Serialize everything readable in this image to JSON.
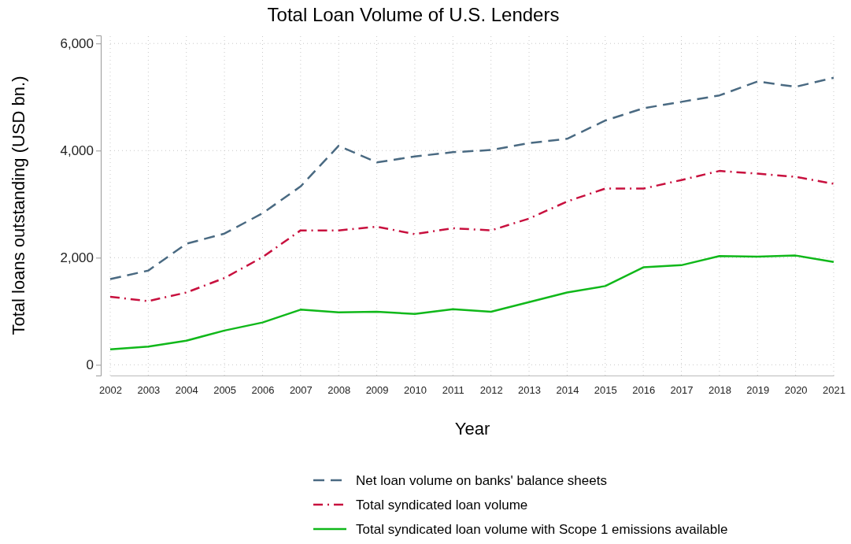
{
  "chart_data": {
    "type": "line",
    "title": "Total Loan Volume of U.S. Lenders",
    "xlabel": "Year",
    "ylabel": "Total loans outstanding (USD bn.)",
    "x": [
      2002,
      2003,
      2004,
      2005,
      2006,
      2007,
      2008,
      2009,
      2010,
      2011,
      2012,
      2013,
      2014,
      2015,
      2016,
      2017,
      2018,
      2019,
      2020,
      2021
    ],
    "series": [
      {
        "name": "Net loan volume on banks' balance sheets",
        "color": "#4a6a82",
        "line_style": "dashed",
        "values": [
          1600,
          1760,
          2260,
          2450,
          2830,
          3330,
          4090,
          3780,
          3890,
          3970,
          4010,
          4140,
          4220,
          4560,
          4790,
          4910,
          5030,
          5290,
          5190,
          5360
        ]
      },
      {
        "name": "Total syndicated loan volume",
        "color": "#c8103e",
        "line_style": "dashdot",
        "values": [
          1270,
          1190,
          1350,
          1620,
          2010,
          2510,
          2510,
          2580,
          2440,
          2550,
          2510,
          2730,
          3050,
          3290,
          3290,
          3450,
          3620,
          3570,
          3510,
          3380
        ]
      },
      {
        "name": "Total syndicated loan volume with Scope 1 emissions available",
        "color": "#10b81a",
        "line_style": "solid",
        "values": [
          290,
          340,
          450,
          640,
          790,
          1030,
          980,
          990,
          950,
          1040,
          990,
          1170,
          1350,
          1470,
          1820,
          1860,
          2030,
          2020,
          2040,
          1920
        ]
      }
    ],
    "xlim": [
      2002,
      2021
    ],
    "xticks": [
      2002,
      2003,
      2004,
      2005,
      2006,
      2007,
      2008,
      2009,
      2010,
      2011,
      2012,
      2013,
      2014,
      2015,
      2016,
      2017,
      2018,
      2019,
      2020,
      2021
    ],
    "ylim": [
      -200,
      6150
    ],
    "yticks": [
      {
        "value": 0,
        "label": "0"
      },
      {
        "value": 2000,
        "label": "2,000"
      },
      {
        "value": 4000,
        "label": "4,000"
      },
      {
        "value": 6000,
        "label": "6,000"
      }
    ],
    "grid": true,
    "legend": "bottom",
    "marker": "none"
  }
}
